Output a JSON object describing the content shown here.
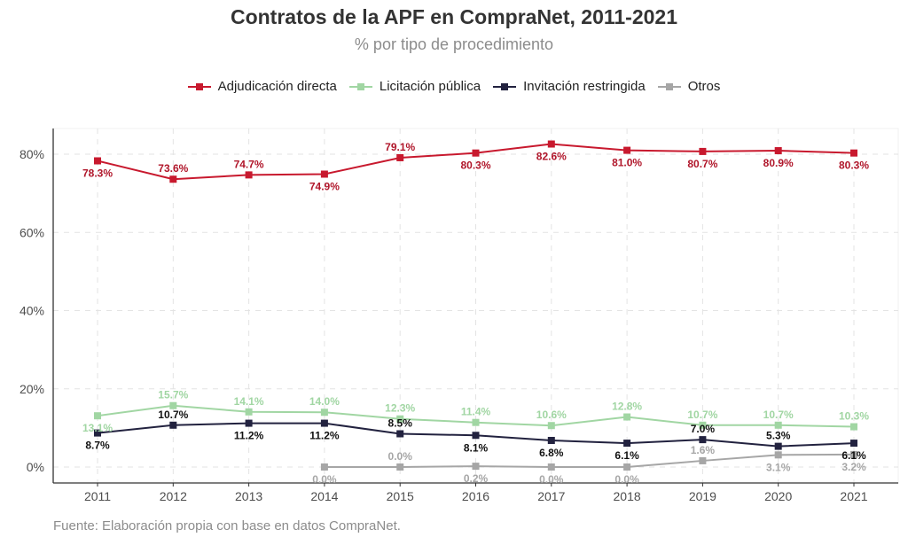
{
  "chart_data": {
    "type": "line",
    "title": "Contratos de la APF en CompraNet, 2011-2021",
    "subtitle": "% por tipo de procedimiento",
    "caption": "Fuente: Elaboración propia con base en datos CompraNet.",
    "xlabel": "",
    "ylabel": "",
    "x": [
      "2011",
      "2012",
      "2013",
      "2014",
      "2015",
      "2016",
      "2017",
      "2018",
      "2019",
      "2020",
      "2021"
    ],
    "ylim": [
      -3.5,
      87
    ],
    "yticks": [
      0,
      20,
      40,
      60,
      80
    ],
    "ytick_labels": [
      "0%",
      "20%",
      "40%",
      "60%",
      "80%"
    ],
    "grid": true,
    "legend_position": "top",
    "series": [
      {
        "name": "Adjudicación directa",
        "color": "#c8192e",
        "label_color": "#b0162a",
        "values": [
          78.3,
          73.6,
          74.7,
          74.9,
          79.1,
          80.3,
          82.6,
          81.0,
          80.7,
          80.9,
          80.3
        ],
        "labels": [
          "78.3%",
          "73.6%",
          "74.7%",
          "74.9%",
          "79.1%",
          "80.3%",
          "82.6%",
          "81.0%",
          "80.7%",
          "80.9%",
          "80.3%"
        ],
        "label_side": [
          "below",
          "above",
          "above",
          "below",
          "above",
          "below",
          "below",
          "below",
          "below",
          "below",
          "below"
        ]
      },
      {
        "name": "Licitación pública",
        "color": "#a1d6a3",
        "label_color": "#a1d6a3",
        "values": [
          13.1,
          15.7,
          14.1,
          14.0,
          12.3,
          11.4,
          10.6,
          12.8,
          10.7,
          10.7,
          10.3
        ],
        "labels": [
          "13.1%",
          "15.7%",
          "14.1%",
          "14.0%",
          "12.3%",
          "11.4%",
          "10.6%",
          "12.8%",
          "10.7%",
          "10.7%",
          "10.3%"
        ],
        "label_side": [
          "below",
          "above",
          "above",
          "above",
          "above",
          "above",
          "above",
          "above",
          "above",
          "above",
          "above"
        ]
      },
      {
        "name": "Invitación restringida",
        "color": "#22223f",
        "label_color": "#111111",
        "values": [
          8.7,
          10.7,
          11.2,
          11.2,
          8.5,
          8.1,
          6.8,
          6.1,
          7.0,
          5.3,
          6.1
        ],
        "labels": [
          "8.7%",
          "10.7%",
          "11.2%",
          "11.2%",
          "8.5%",
          "8.1%",
          "6.8%",
          "6.1%",
          "7.0%",
          "5.3%",
          "6.1%"
        ],
        "label_side": [
          "below",
          "above",
          "below",
          "below",
          "above",
          "below",
          "below",
          "below",
          "above",
          "above",
          "below"
        ]
      },
      {
        "name": "Otros",
        "color": "#a6a6a6",
        "label_color": "#a6a6a6",
        "values": [
          null,
          null,
          null,
          0.0,
          0.0,
          0.2,
          0.0,
          0.0,
          1.6,
          3.1,
          3.2
        ],
        "labels": [
          null,
          null,
          null,
          "0.0%",
          "0.0%",
          "0.2%",
          "0.0%",
          "0.0%",
          "1.6%",
          "3.1%",
          "3.2%"
        ],
        "label_side": [
          null,
          null,
          null,
          "below",
          "above",
          "below",
          "below",
          "below",
          "above",
          "below",
          "below"
        ]
      }
    ]
  }
}
